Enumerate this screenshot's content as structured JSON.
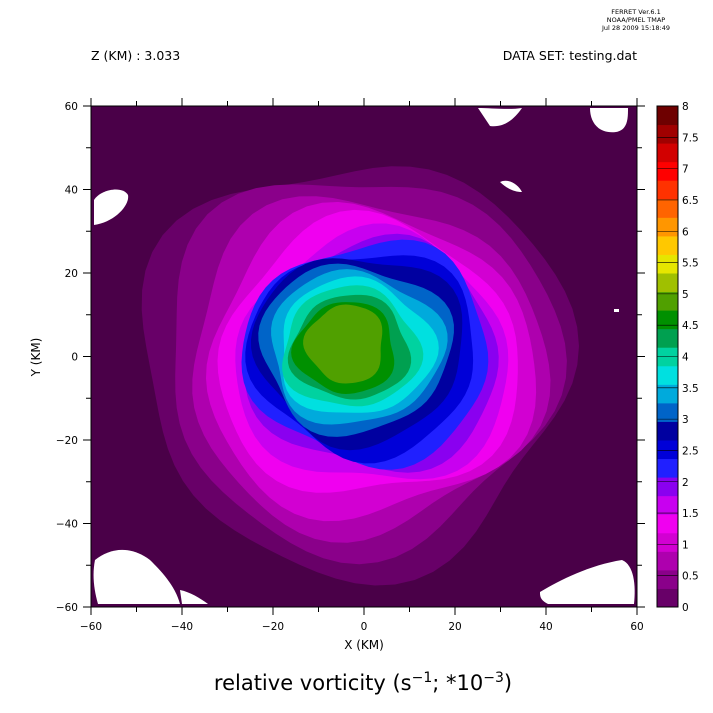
{
  "header": {
    "left_label": "Z (KM) : 3.033",
    "right_label": "DATA SET: testing.dat",
    "stamp_line1": "FERRET  Ver.6.1",
    "stamp_line2": "NOAA/PMEL TMAP",
    "stamp_line3": "Jul 28 2009 15:18:49"
  },
  "caption": {
    "main": "relative vorticity (s",
    "sup1": "−1",
    "mid": "; *10",
    "sup2": "−3",
    "end": ")"
  },
  "chart_data": {
    "type": "heatmap",
    "subtype": "filled-contour",
    "xlabel": "X (KM)",
    "ylabel": "Y (KM)",
    "xlim": [
      -60,
      60
    ],
    "ylim": [
      -60,
      60
    ],
    "x_ticks": [
      -60,
      -40,
      -20,
      0,
      20,
      40,
      60
    ],
    "y_ticks": [
      -60,
      -40,
      -20,
      0,
      20,
      40,
      60
    ],
    "colorbar_levels": [
      0,
      0.5,
      1,
      1.5,
      2,
      2.5,
      3,
      3.5,
      4,
      4.5,
      5,
      5.5,
      6,
      6.5,
      7,
      7.5,
      8
    ],
    "colorbar_labels": [
      "0",
      "0.5",
      "1",
      "1.5",
      "2",
      "2.5",
      "3",
      "3.5",
      "4",
      "4.5",
      "5",
      "5.5",
      "6",
      "6.5",
      "7",
      "7.5",
      "8"
    ],
    "colorbar_colors": [
      "#4a0048",
      "#680068",
      "#8a008a",
      "#ae00ae",
      "#d200d2",
      "#f000f0",
      "#c800f0",
      "#8a00f0",
      "#2020ff",
      "#0000d8",
      "#0000a0",
      "#0064c8",
      "#00aadc",
      "#00e0e0",
      "#00d2a0",
      "#00a050",
      "#009000",
      "#50a000",
      "#a0c000",
      "#e6e600",
      "#ffc800",
      "#ff9600",
      "#ff6400",
      "#ff3200",
      "#ff0000",
      "#d20000",
      "#a00000",
      "#6e0000"
    ],
    "field": {
      "center_x_km": -2,
      "center_y_km": 1,
      "max_value": 5.0,
      "min_value": 0,
      "description": "vortex with peak ~5 near center, ring of blue/cyan, magenta skirt, near zero toward edges"
    }
  }
}
